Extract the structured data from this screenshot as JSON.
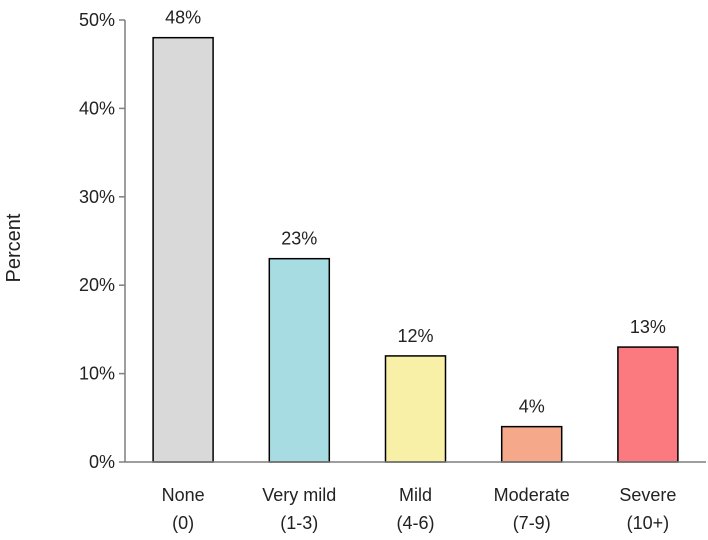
{
  "chart_data": {
    "type": "bar",
    "title": "",
    "xlabel": "",
    "ylabel": "Percent",
    "ylim": [
      0,
      50
    ],
    "yticks": [
      "0%",
      "10%",
      "20%",
      "30%",
      "40%",
      "50%"
    ],
    "grid": false,
    "legend": "none",
    "categories": [
      {
        "line1": "None",
        "line2": "(0)"
      },
      {
        "line1": "Very mild",
        "line2": "(1-3)"
      },
      {
        "line1": "Mild",
        "line2": "(4-6)"
      },
      {
        "line1": "Moderate",
        "line2": "(7-9)"
      },
      {
        "line1": "Severe",
        "line2": "(10+)"
      }
    ],
    "values": [
      48,
      23,
      12,
      4,
      13
    ],
    "data_labels": [
      "48%",
      "23%",
      "12%",
      "4%",
      "13%"
    ],
    "colors": [
      "#d9d9d9",
      "#a8dce3",
      "#f7f0a6",
      "#f5a98a",
      "#fb7a7f"
    ]
  }
}
